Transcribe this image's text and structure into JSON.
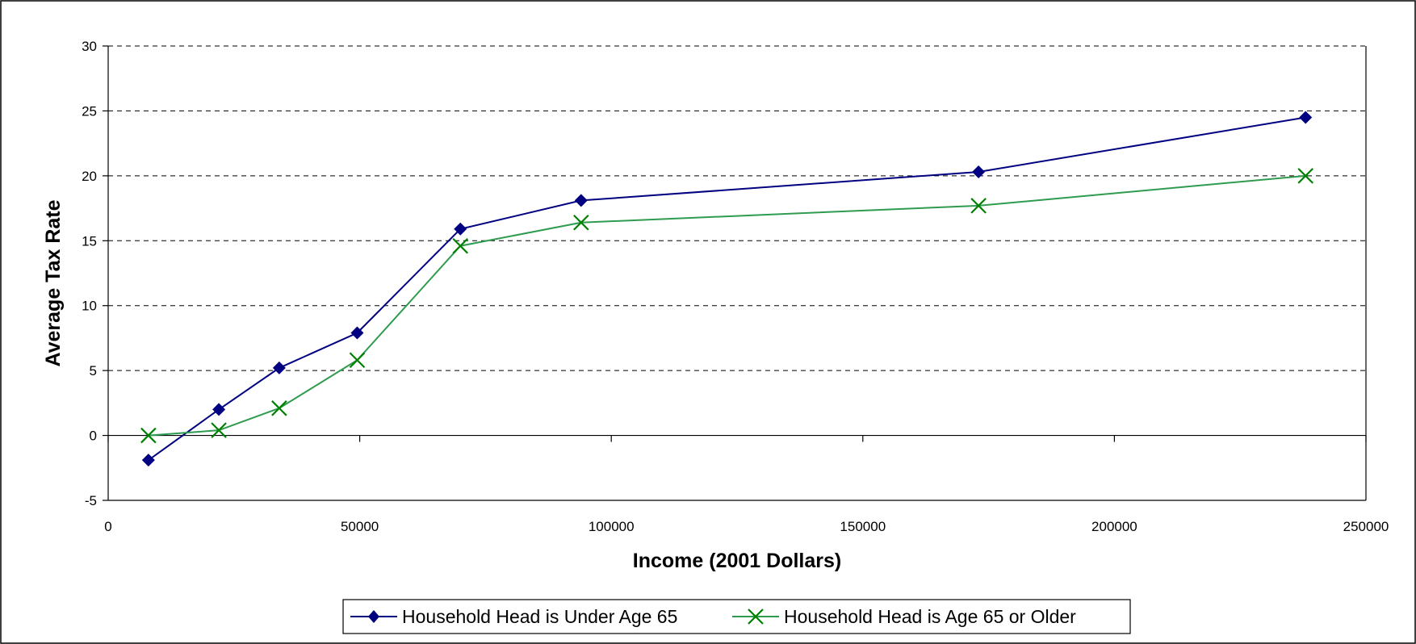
{
  "chart_data": {
    "type": "line",
    "xlabel": "Income (2001 Dollars)",
    "ylabel": "Average Tax Rate",
    "xlim": [
      0,
      250000
    ],
    "ylim": [
      -5,
      30
    ],
    "xticks": [
      "0",
      "50000",
      "100000",
      "150000",
      "200000",
      "250000"
    ],
    "yticks": [
      "-5",
      "0",
      "5",
      "10",
      "15",
      "20",
      "25",
      "30"
    ],
    "grid": "horizontal dashed",
    "legend_position": "bottom",
    "series": [
      {
        "name": "Household Head is Under Age 65",
        "color": "#000080",
        "marker": "diamond",
        "x": [
          8000,
          22000,
          34000,
          49500,
          70000,
          94000,
          173000,
          238000
        ],
        "y": [
          -1.9,
          2.0,
          5.2,
          7.9,
          15.9,
          18.1,
          20.3,
          24.5
        ]
      },
      {
        "name": "Household Head is Age 65 or Older",
        "color": "#2e9b4e",
        "marker_color": "#008000",
        "marker": "x",
        "x": [
          8000,
          22000,
          34000,
          49500,
          70000,
          94000,
          173000,
          238000
        ],
        "y": [
          0.0,
          0.4,
          2.1,
          5.8,
          14.6,
          16.4,
          17.7,
          20.0
        ]
      }
    ]
  }
}
